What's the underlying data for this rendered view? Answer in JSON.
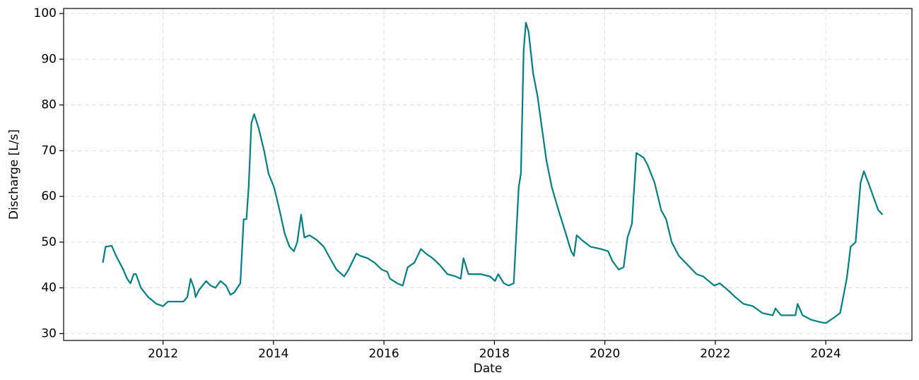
{
  "chart_data": {
    "type": "line",
    "xlabel": "Date",
    "ylabel": "Discharge [L/s]",
    "xlim": [
      2010.2,
      2025.56
    ],
    "ylim": [
      28.5,
      101.1
    ],
    "xticks": [
      2012,
      2014,
      2016,
      2018,
      2020,
      2022,
      2024
    ],
    "yticks": [
      30,
      40,
      50,
      60,
      70,
      80,
      90,
      100
    ],
    "grid": true,
    "x": [
      2010.91,
      2010.96,
      2011.07,
      2011.15,
      2011.28,
      2011.35,
      2011.41,
      2011.47,
      2011.51,
      2011.6,
      2011.73,
      2011.88,
      2012.0,
      2012.09,
      2012.37,
      2012.44,
      2012.5,
      2012.56,
      2012.59,
      2012.65,
      2012.78,
      2012.86,
      2012.95,
      2013.04,
      2013.14,
      2013.22,
      2013.29,
      2013.4,
      2013.46,
      2013.51,
      2013.55,
      2013.6,
      2013.65,
      2013.73,
      2013.83,
      2013.91,
      2014.01,
      2014.11,
      2014.2,
      2014.29,
      2014.37,
      2014.43,
      2014.5,
      2014.56,
      2014.65,
      2014.78,
      2014.91,
      2015.0,
      2015.14,
      2015.28,
      2015.36,
      2015.5,
      2015.57,
      2015.7,
      2015.83,
      2015.96,
      2016.06,
      2016.11,
      2016.24,
      2016.34,
      2016.43,
      2016.55,
      2016.67,
      2016.76,
      2016.88,
      2017.01,
      2017.15,
      2017.3,
      2017.39,
      2017.44,
      2017.53,
      2017.75,
      2017.92,
      2018.01,
      2018.07,
      2018.17,
      2018.26,
      2018.35,
      2018.44,
      2018.48,
      2018.53,
      2018.57,
      2018.62,
      2018.7,
      2018.78,
      2018.86,
      2018.94,
      2019.04,
      2019.16,
      2019.29,
      2019.39,
      2019.44,
      2019.49,
      2019.58,
      2019.74,
      2019.93,
      2020.06,
      2020.13,
      2020.25,
      2020.34,
      2020.41,
      2020.49,
      2020.57,
      2020.7,
      2020.77,
      2020.9,
      2021.02,
      2021.11,
      2021.21,
      2021.34,
      2021.46,
      2021.66,
      2021.78,
      2021.98,
      2022.08,
      2022.23,
      2022.36,
      2022.51,
      2022.68,
      2022.85,
      2023.04,
      2023.09,
      2023.19,
      2023.45,
      2023.49,
      2023.58,
      2023.74,
      2023.9,
      2024.0,
      2024.15,
      2024.26,
      2024.38,
      2024.45,
      2024.54,
      2024.63,
      2024.69,
      2024.77,
      2024.86,
      2024.95,
      2025.03
    ],
    "series": [
      {
        "color": "#008080",
        "values": [
          45.5,
          49,
          49.2,
          47,
          44,
          42,
          41,
          43,
          43,
          40,
          38,
          36.5,
          36,
          37,
          37,
          38,
          42,
          40,
          38,
          39.5,
          41.5,
          40.5,
          40,
          41.5,
          40.5,
          38.5,
          39,
          41,
          55,
          55,
          62,
          76,
          78,
          75,
          70,
          65,
          62,
          57,
          52,
          49,
          48,
          50,
          56,
          51,
          51.5,
          50.5,
          49,
          47,
          44,
          42.5,
          44,
          47.5,
          47,
          46.5,
          45.5,
          44,
          43.5,
          42,
          41,
          40.5,
          44.5,
          45.5,
          48.5,
          47.5,
          46.5,
          45,
          43,
          42.5,
          42,
          46.5,
          43,
          43,
          42.5,
          41.5,
          43,
          41,
          40.5,
          41,
          62,
          65,
          92,
          98,
          96,
          87,
          82,
          75,
          68,
          62,
          57,
          52,
          48,
          47,
          51.5,
          50.5,
          49,
          48.5,
          48,
          46,
          44,
          44.5,
          51,
          54,
          69.5,
          68.5,
          67,
          63,
          57,
          55,
          50,
          47,
          45.5,
          43,
          42.5,
          40.5,
          41,
          39.5,
          38,
          36.5,
          36,
          34.5,
          34,
          35.5,
          34,
          34,
          36.5,
          34,
          33,
          32.5,
          32.3,
          33.5,
          34.5,
          42,
          49,
          50,
          63,
          65.5,
          63,
          60,
          57,
          56
        ]
      }
    ]
  }
}
